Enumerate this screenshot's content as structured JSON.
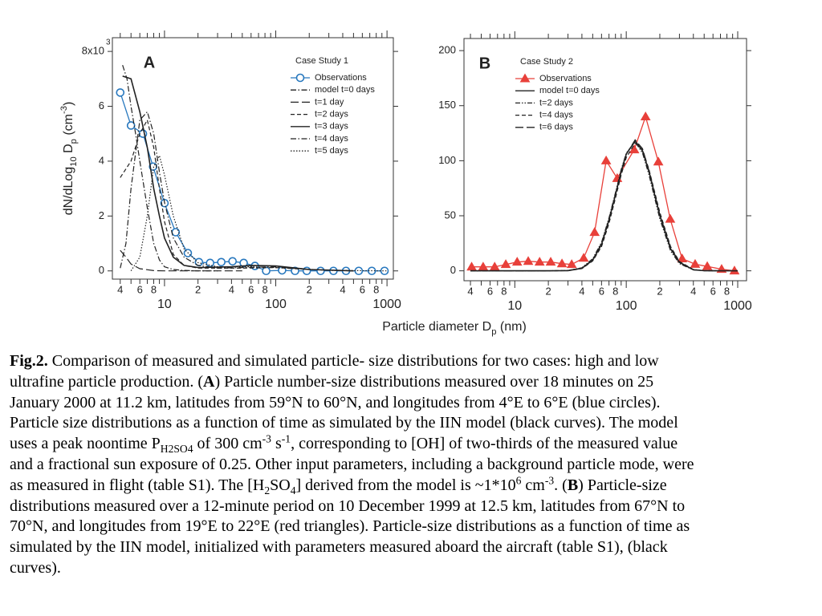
{
  "chart_data": [
    {
      "type": "line",
      "panel": "A",
      "xscale": "log",
      "xlim": [
        3.4,
        1140
      ],
      "ylim": [
        -0.3,
        8.5
      ],
      "xticks": [
        4,
        6,
        8,
        10,
        {
          "value": 20,
          "label": "2"
        },
        {
          "value": 40,
          "label": "4"
        },
        {
          "value": 60,
          "label": "6"
        },
        {
          "value": 80,
          "label": "8"
        },
        100,
        {
          "value": 200,
          "label": "2"
        },
        {
          "value": 400,
          "label": "4"
        },
        {
          "value": 600,
          "label": "6"
        },
        {
          "value": 800,
          "label": "8"
        },
        1000
      ],
      "xminorticks": [
        5,
        7,
        9,
        30,
        50,
        70,
        90,
        300,
        500,
        700,
        900
      ],
      "yticks": [
        0,
        2,
        4,
        6,
        {
          "value": 8,
          "label": "8x10"
        }
      ],
      "yexponent": "3",
      "ylabel": [
        {
          "t": "dN/dLog"
        },
        {
          "t": "10",
          "s": "sub"
        },
        {
          "t": " D"
        },
        {
          "t": "p",
          "s": "sub"
        },
        {
          "t": " (cm"
        },
        {
          "t": "-3",
          "s": "sup"
        },
        {
          "t": ")"
        }
      ],
      "legend_title": "Case Study 1",
      "series": [
        {
          "name": "Observations",
          "color": "#2878be",
          "marker": "circle",
          "linestyle": "solid",
          "x": [
            4.0,
            5.0,
            6.4,
            7.9,
            10,
            12.6,
            16.2,
            20.4,
            25.7,
            32.4,
            40.9,
            51.5,
            65,
            82,
            114,
            149,
            190,
            253,
            330,
            428,
            557,
            730,
            950
          ],
          "values": [
            6.5,
            5.3,
            5.0,
            3.8,
            2.47,
            1.41,
            0.65,
            0.32,
            0.29,
            0.32,
            0.35,
            0.29,
            0.18,
            0.0,
            0.02,
            0,
            0,
            0,
            0,
            0,
            0,
            0,
            0
          ]
        },
        {
          "name": "model t=0 days",
          "color": "#222222",
          "linestyle": "dashdot",
          "x": [
            4.2,
            4.6,
            5,
            5.5,
            6,
            7,
            8,
            9,
            10,
            12,
            15,
            20,
            30
          ],
          "values": [
            7.5,
            7.0,
            6.0,
            5.0,
            4.0,
            2.3,
            1.0,
            0.4,
            0.15,
            0.05,
            0.02,
            0,
            0
          ]
        },
        {
          "name": "t=1 day",
          "color": "#222222",
          "linestyle": "longdash",
          "x": [
            4,
            4.5,
            5,
            6,
            8,
            10,
            20,
            50
          ],
          "values": [
            0.75,
            0.5,
            0.25,
            0.08,
            0.01,
            0,
            0,
            0
          ]
        },
        {
          "name": "t=2 days",
          "color": "#222222",
          "linestyle": "dashed",
          "x": [
            4,
            5,
            6,
            7,
            8,
            9,
            10,
            12,
            15,
            20,
            30,
            50,
            100,
            200,
            500
          ],
          "values": [
            3.4,
            4.0,
            5.0,
            5.5,
            4.5,
            3.0,
            1.8,
            0.6,
            0.2,
            0.1,
            0.1,
            0.1,
            0.12,
            0.05,
            0
          ]
        },
        {
          "name": "t=3 days",
          "color": "#222222",
          "linestyle": "solid",
          "x": [
            4.2,
            5,
            6,
            7,
            8,
            9,
            10,
            12,
            15,
            20,
            40,
            60,
            100,
            200,
            500
          ],
          "values": [
            7.1,
            7.0,
            5.8,
            4.5,
            3.0,
            2.0,
            1.2,
            0.5,
            0.2,
            0.12,
            0.15,
            0.2,
            0.18,
            0.05,
            0
          ]
        },
        {
          "name": "t=4 days",
          "color": "#222222",
          "linestyle": "dashdot",
          "x": [
            4,
            4.5,
            5,
            6,
            7,
            8,
            9,
            10,
            12,
            15,
            20,
            30,
            50,
            100,
            200,
            500
          ],
          "values": [
            0.1,
            1,
            3,
            5.5,
            5.8,
            5.0,
            3.6,
            2.5,
            1.2,
            0.5,
            0.2,
            0.1,
            0.12,
            0.15,
            0.05,
            0
          ]
        },
        {
          "name": "t=5 days",
          "color": "#222222",
          "linestyle": "dotted",
          "x": [
            5,
            6,
            7,
            8,
            9,
            10,
            12,
            15,
            20,
            30,
            60,
            100,
            300,
            1000
          ],
          "values": [
            0,
            0.5,
            2,
            3.8,
            4.2,
            3.5,
            2,
            0.8,
            0.3,
            0.15,
            0.15,
            0.12,
            0.02,
            0
          ]
        }
      ]
    },
    {
      "type": "line",
      "panel": "B",
      "xscale": "log",
      "xlim": [
        3.5,
        1200
      ],
      "ylim": [
        -9,
        211
      ],
      "xticks": [
        4,
        6,
        8,
        10,
        {
          "value": 20,
          "label": "2"
        },
        {
          "value": 40,
          "label": "4"
        },
        {
          "value": 60,
          "label": "6"
        },
        {
          "value": 80,
          "label": "8"
        },
        100,
        {
          "value": 200,
          "label": "2"
        },
        {
          "value": 400,
          "label": "4"
        },
        {
          "value": 600,
          "label": "6"
        },
        {
          "value": 800,
          "label": "8"
        },
        1000
      ],
      "xminorticks": [
        5,
        7,
        9,
        30,
        50,
        70,
        90,
        300,
        500,
        700,
        900
      ],
      "yticks": [
        0,
        50,
        100,
        150,
        200
      ],
      "legend_title": "Case Study 2",
      "series": [
        {
          "name": "Observations",
          "color": "#e8403a",
          "marker": "triangle",
          "linestyle": "solid",
          "x": [
            4.1,
            5.2,
            6.6,
            8.3,
            10.5,
            13.2,
            16.7,
            21,
            26.5,
            32.4,
            41.5,
            52,
            66,
            83,
            118,
            149,
            194,
            248,
            317,
            415,
            533,
            717,
            935
          ],
          "values": [
            3.6,
            3.6,
            3.6,
            5.8,
            8,
            8.7,
            8,
            8,
            6.5,
            5.8,
            11.6,
            35,
            100,
            84,
            110,
            140,
            99,
            47,
            11,
            6,
            4,
            1.5,
            0
          ]
        },
        {
          "name": "model t=0 days",
          "color": "#222222",
          "linestyle": "solid",
          "x": [
            4,
            10,
            20,
            30,
            40,
            50,
            60,
            70,
            80,
            90,
            100,
            120,
            140,
            160,
            200,
            250,
            300,
            400,
            500,
            1000
          ],
          "values": [
            0,
            0,
            0,
            0.2,
            2.3,
            9.7,
            24,
            46,
            69,
            90,
            106,
            118,
            109,
            90,
            50,
            20,
            7.6,
            1,
            0.1,
            0
          ]
        },
        {
          "name": "t=2 days",
          "color": "#222222",
          "linestyle": "dashdotdot",
          "x": [
            4,
            10,
            20,
            30,
            40,
            50,
            60,
            70,
            80,
            90,
            100,
            120,
            140,
            160,
            200,
            250,
            300,
            400,
            500,
            1000
          ],
          "values": [
            0,
            0,
            0,
            0.3,
            2.8,
            11,
            26,
            48,
            71,
            92,
            107,
            117,
            107,
            87,
            47,
            18,
            6.5,
            0.8,
            0.1,
            0
          ]
        },
        {
          "name": "t=4 days",
          "color": "#222222",
          "linestyle": "dashed",
          "x": [
            4,
            10,
            20,
            30,
            40,
            50,
            60,
            70,
            80,
            90,
            100,
            120,
            140,
            160,
            200,
            250,
            300,
            400,
            500,
            1000
          ],
          "values": [
            0,
            0,
            0,
            0.2,
            2,
            9,
            22,
            43,
            66,
            87,
            103,
            116,
            110,
            92,
            53,
            22,
            8.5,
            1.2,
            0.1,
            0
          ]
        },
        {
          "name": "t=6 days",
          "color": "#222222",
          "linestyle": "longdash",
          "x": [
            4,
            10,
            20,
            30,
            40,
            50,
            60,
            70,
            80,
            90,
            100,
            120,
            140,
            160,
            200,
            250,
            300,
            400,
            500,
            1000
          ],
          "values": [
            0,
            0,
            0,
            0.3,
            2.5,
            10,
            25,
            47,
            70,
            91,
            106,
            119,
            111,
            91,
            51,
            21,
            8,
            1,
            0.1,
            0
          ]
        }
      ]
    }
  ],
  "xlabel": [
    {
      "t": "Particle diameter D"
    },
    {
      "t": "p",
      "s": "sub"
    },
    {
      "t": " (nm)"
    }
  ],
  "caption": {
    "lines": [
      [
        {
          "t": "Fig.2.",
          "s": "b"
        },
        {
          "t": " Comparison of measured and simulated particle- size distributions for two cases: high and low"
        }
      ],
      [
        {
          "t": "ultrafine particle production. ("
        },
        {
          "t": "A",
          "s": "b"
        },
        {
          "t": ") Particle number-size distributions measured over 18 minutes on 25"
        }
      ],
      [
        {
          "t": "January 2000 at 11.2 km, latitudes from 59°N to 60°N, and longitudes from 4°E to 6°E (blue circles)."
        }
      ],
      [
        {
          "t": "Particle size distributions as a function of time as simulated by the IIN model (black curves). The model"
        }
      ],
      [
        {
          "t": "uses a peak noontime P"
        },
        {
          "t": "H2SO4",
          "s": "sub"
        },
        {
          "t": " of 300 cm"
        },
        {
          "t": "-3",
          "s": "sup"
        },
        {
          "t": " s"
        },
        {
          "t": "-1",
          "s": "sup"
        },
        {
          "t": ", corresponding to [OH] of two-thirds of the measured value"
        }
      ],
      [
        {
          "t": "and a fractional sun exposure of 0.25. Other input parameters, including a background particle mode, were"
        }
      ],
      [
        {
          "t": "as measured in flight (table S1). The [H"
        },
        {
          "t": "2",
          "s": "sub"
        },
        {
          "t": "SO"
        },
        {
          "t": "4",
          "s": "sub"
        },
        {
          "t": "] derived from the model is ~1*10"
        },
        {
          "t": "6",
          "s": "sup"
        },
        {
          "t": " cm"
        },
        {
          "t": "-3",
          "s": "sup"
        },
        {
          "t": ". ("
        },
        {
          "t": "B",
          "s": "b"
        },
        {
          "t": ") Particle-size"
        }
      ],
      [
        {
          "t": "distributions measured over a 12-minute period on 10 December 1999 at 12.5 km, latitudes from 67°N to"
        }
      ],
      [
        {
          "t": "70°N, and longitudes from 19°E to 22°E (red triangles). Particle-size distributions as a function of time as"
        }
      ],
      [
        {
          "t": "simulated by the IIN model, initialized with parameters measured aboard the aircraft (table S1), (black"
        }
      ],
      [
        {
          "t": "curves)."
        }
      ]
    ]
  }
}
